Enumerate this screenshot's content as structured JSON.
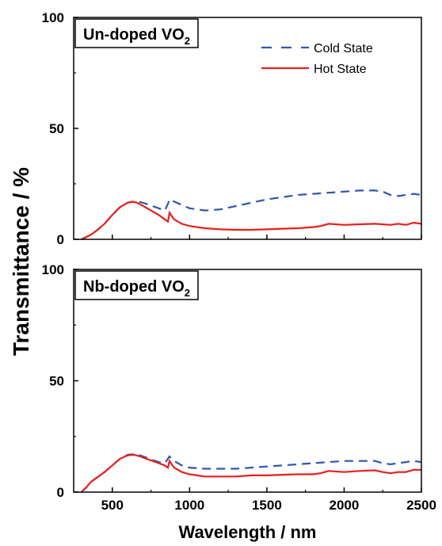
{
  "chart_data": [
    {
      "type": "line",
      "panel_title": "Un-doped VO",
      "panel_title_sub": "2",
      "xlim": [
        250,
        2500
      ],
      "ylim": [
        0,
        100
      ],
      "xticks": [
        500,
        1000,
        1500,
        2000,
        2500
      ],
      "yticks": [
        0,
        50,
        100
      ],
      "legend_position": "top-right",
      "series": [
        {
          "name": "Cold State",
          "color": "#2d56b3",
          "dash": "dashed",
          "x": [
            300,
            330,
            360,
            400,
            450,
            500,
            550,
            600,
            640,
            680,
            720,
            760,
            800,
            840,
            860,
            870,
            900,
            1000,
            1100,
            1200,
            1300,
            1400,
            1500,
            1600,
            1700,
            1800,
            1900,
            2000,
            2100,
            2200,
            2250,
            2300,
            2350,
            2400,
            2450,
            2500
          ],
          "y": [
            0,
            1,
            2,
            4,
            7,
            11,
            14.5,
            16.5,
            17,
            16.8,
            16,
            15,
            14,
            13,
            16,
            18,
            17,
            14,
            13,
            13.5,
            15,
            16.5,
            18,
            19,
            20,
            20.5,
            21,
            21.5,
            22,
            22,
            21.5,
            20,
            19.5,
            20,
            20.5,
            20
          ]
        },
        {
          "name": "Hot State",
          "color": "#e8201e",
          "dash": "solid",
          "x": [
            300,
            330,
            360,
            400,
            450,
            500,
            550,
            600,
            630,
            660,
            700,
            750,
            800,
            840,
            860,
            870,
            880,
            900,
            950,
            1000,
            1100,
            1200,
            1300,
            1400,
            1500,
            1600,
            1700,
            1800,
            1850,
            1900,
            2000,
            2100,
            2200,
            2300,
            2350,
            2400,
            2450,
            2500
          ],
          "y": [
            0,
            1,
            2,
            4,
            7,
            11,
            14.5,
            16.5,
            17,
            16.5,
            15,
            13,
            11,
            9,
            8,
            12,
            11,
            9,
            7,
            6,
            5,
            4.5,
            4.3,
            4.3,
            4.5,
            4.8,
            5,
            5.5,
            6,
            7,
            6.5,
            6.8,
            7,
            6.5,
            7,
            6.5,
            7.5,
            7
          ]
        }
      ]
    },
    {
      "type": "line",
      "panel_title": "Nb-doped VO",
      "panel_title_sub": "2",
      "xlim": [
        250,
        2500
      ],
      "ylim": [
        0,
        100
      ],
      "xticks": [
        500,
        1000,
        1500,
        2000,
        2500
      ],
      "yticks": [
        0,
        50,
        100
      ],
      "xlabel": "Wavelength / nm",
      "series": [
        {
          "name": "Cold State",
          "color": "#2d56b3",
          "dash": "dashed",
          "x": [
            300,
            330,
            360,
            400,
            450,
            500,
            550,
            600,
            640,
            680,
            720,
            760,
            800,
            840,
            860,
            870,
            900,
            950,
            1000,
            1100,
            1200,
            1300,
            1400,
            1500,
            1600,
            1700,
            1800,
            1900,
            2000,
            2100,
            2200,
            2250,
            2300,
            2350,
            2400,
            2450,
            2500
          ],
          "y": [
            0,
            2,
            4.5,
            6.5,
            9,
            12,
            15,
            16.8,
            17,
            16.5,
            15.5,
            14.5,
            13.5,
            13,
            15,
            16,
            14,
            12,
            11,
            10.5,
            10.5,
            10.5,
            11,
            11.5,
            12,
            12.5,
            13,
            13.5,
            14,
            14,
            14,
            13,
            12.5,
            13,
            13.5,
            14,
            13.5
          ]
        },
        {
          "name": "Hot State",
          "color": "#e8201e",
          "dash": "solid",
          "x": [
            300,
            330,
            360,
            400,
            450,
            500,
            550,
            600,
            640,
            680,
            720,
            760,
            800,
            840,
            860,
            870,
            880,
            900,
            950,
            1000,
            1100,
            1200,
            1300,
            1400,
            1500,
            1600,
            1700,
            1800,
            1850,
            1900,
            2000,
            2100,
            2200,
            2250,
            2300,
            2350,
            2400,
            2450,
            2500
          ],
          "y": [
            0,
            2,
            4.5,
            6.5,
            9,
            12,
            15,
            16.5,
            16.8,
            16,
            15,
            14,
            13,
            12,
            11,
            14,
            13,
            11,
            9,
            8,
            7,
            7,
            7,
            7.5,
            7.5,
            7.8,
            8,
            8,
            8.5,
            9.5,
            9,
            9.5,
            9.8,
            9,
            8.5,
            9,
            9,
            10,
            10
          ]
        }
      ]
    }
  ],
  "ylabel": "Transmittance / %"
}
